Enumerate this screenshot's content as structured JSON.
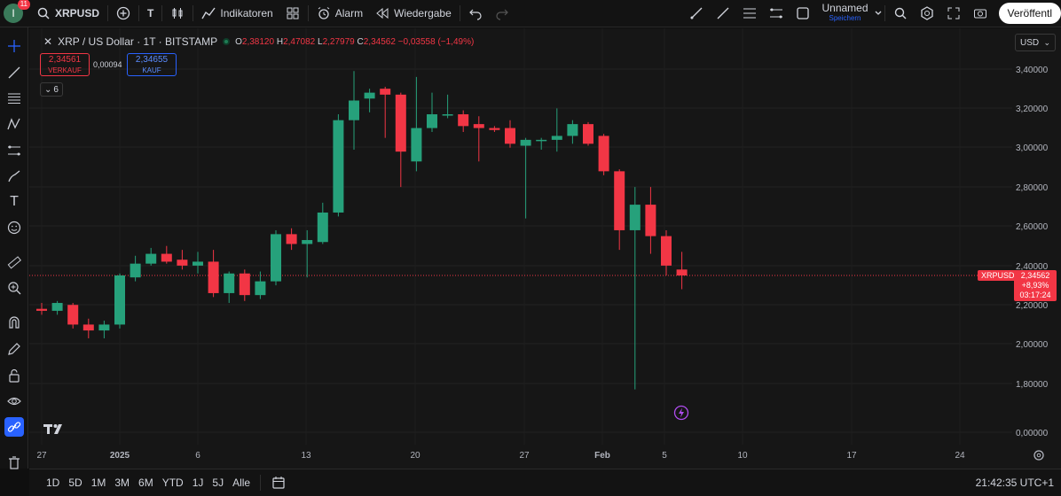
{
  "topbar": {
    "avatar_letter": "I",
    "notifications": "11",
    "symbol": "XRPUSD",
    "text_tool": "T",
    "indicators": "Indikatoren",
    "alarm": "Alarm",
    "replay": "Wiedergabe",
    "layout_name": "Unnamed",
    "save_label": "Speichern",
    "publish": "Veröffentl"
  },
  "legend": {
    "title": "XRP / US Dollar · 1T · BITSTAMP",
    "o_label": "O",
    "o_val": "2,38120",
    "h_label": "H",
    "h_val": "2,47082",
    "l_label": "L",
    "l_val": "2,27979",
    "c_label": "C",
    "c_val": "2,34562",
    "change": "−0,03558 (−1,49%)",
    "sell_price": "2,34561",
    "sell_label": "VERKAUF",
    "spread": "0,00094",
    "buy_price": "2,34655",
    "buy_label": "KAUF",
    "indicator_count": "6"
  },
  "currency": "USD",
  "price_tag": {
    "symbol": "XRPUSD",
    "price": "2,34562",
    "change": "+8,93%",
    "countdown": "03:17:24"
  },
  "bottombar": {
    "timeframes": [
      "1D",
      "5D",
      "1M",
      "3M",
      "6M",
      "YTD",
      "1J",
      "5J",
      "Alle"
    ],
    "clock": "21:42:35 UTC+1"
  },
  "colors": {
    "up": "#26a17b",
    "down": "#f23645",
    "accent": "#2962ff",
    "bg": "#161616"
  },
  "chart_data": {
    "type": "candlestick",
    "y_ticks": [
      "3,40000",
      "3,20000",
      "3,00000",
      "2,80000",
      "2,60000",
      "2,40000",
      "2,20000",
      "2,00000",
      "1,80000",
      "0,00000"
    ],
    "x_ticks": [
      "27",
      "2025",
      "6",
      "13",
      "20",
      "27",
      "Feb",
      "5",
      "10",
      "17",
      "24"
    ],
    "candles": [
      {
        "o": 2.18,
        "h": 2.21,
        "l": 2.15,
        "c": 2.17
      },
      {
        "o": 2.17,
        "h": 2.22,
        "l": 2.15,
        "c": 2.21
      },
      {
        "o": 2.2,
        "h": 2.21,
        "l": 2.08,
        "c": 2.1
      },
      {
        "o": 2.1,
        "h": 2.13,
        "l": 2.03,
        "c": 2.07
      },
      {
        "o": 2.07,
        "h": 2.12,
        "l": 2.03,
        "c": 2.1
      },
      {
        "o": 2.1,
        "h": 2.36,
        "l": 2.08,
        "c": 2.35
      },
      {
        "o": 2.34,
        "h": 2.45,
        "l": 2.32,
        "c": 2.41
      },
      {
        "o": 2.41,
        "h": 2.49,
        "l": 2.4,
        "c": 2.46
      },
      {
        "o": 2.46,
        "h": 2.5,
        "l": 2.41,
        "c": 2.42
      },
      {
        "o": 2.43,
        "h": 2.48,
        "l": 2.38,
        "c": 2.4
      },
      {
        "o": 2.4,
        "h": 2.47,
        "l": 2.36,
        "c": 2.42
      },
      {
        "o": 2.42,
        "h": 2.48,
        "l": 2.24,
        "c": 2.26
      },
      {
        "o": 2.26,
        "h": 2.37,
        "l": 2.21,
        "c": 2.36
      },
      {
        "o": 2.36,
        "h": 2.38,
        "l": 2.22,
        "c": 2.25
      },
      {
        "o": 2.25,
        "h": 2.37,
        "l": 2.23,
        "c": 2.32
      },
      {
        "o": 2.32,
        "h": 2.58,
        "l": 2.3,
        "c": 2.56
      },
      {
        "o": 2.56,
        "h": 2.59,
        "l": 2.48,
        "c": 2.51
      },
      {
        "o": 2.51,
        "h": 2.58,
        "l": 2.34,
        "c": 2.53
      },
      {
        "o": 2.52,
        "h": 2.72,
        "l": 2.51,
        "c": 2.67
      },
      {
        "o": 2.67,
        "h": 3.17,
        "l": 2.65,
        "c": 3.14
      },
      {
        "o": 3.14,
        "h": 3.39,
        "l": 2.99,
        "c": 3.24
      },
      {
        "o": 3.25,
        "h": 3.3,
        "l": 3.18,
        "c": 3.28
      },
      {
        "o": 3.3,
        "h": 3.31,
        "l": 3.05,
        "c": 3.27
      },
      {
        "o": 3.27,
        "h": 3.28,
        "l": 2.8,
        "c": 2.98
      },
      {
        "o": 2.93,
        "h": 3.36,
        "l": 2.88,
        "c": 3.1
      },
      {
        "o": 3.1,
        "h": 3.28,
        "l": 3.08,
        "c": 3.17
      },
      {
        "o": 3.17,
        "h": 3.27,
        "l": 3.15,
        "c": 3.17
      },
      {
        "o": 3.17,
        "h": 3.19,
        "l": 3.08,
        "c": 3.11
      },
      {
        "o": 3.12,
        "h": 3.16,
        "l": 2.93,
        "c": 3.1
      },
      {
        "o": 3.1,
        "h": 3.11,
        "l": 3.08,
        "c": 3.09
      },
      {
        "o": 3.1,
        "h": 3.14,
        "l": 3.0,
        "c": 3.02
      },
      {
        "o": 3.01,
        "h": 3.05,
        "l": 2.64,
        "c": 3.04
      },
      {
        "o": 3.04,
        "h": 3.05,
        "l": 2.99,
        "c": 3.04
      },
      {
        "o": 3.04,
        "h": 3.2,
        "l": 2.98,
        "c": 3.06
      },
      {
        "o": 3.06,
        "h": 3.14,
        "l": 3.02,
        "c": 3.12
      },
      {
        "o": 3.12,
        "h": 3.13,
        "l": 3.01,
        "c": 3.02
      },
      {
        "o": 3.06,
        "h": 3.07,
        "l": 2.86,
        "c": 2.88
      },
      {
        "o": 2.88,
        "h": 2.89,
        "l": 2.48,
        "c": 2.58
      },
      {
        "o": 2.58,
        "h": 2.8,
        "l": 1.77,
        "c": 2.71
      },
      {
        "o": 2.71,
        "h": 2.8,
        "l": 2.46,
        "c": 2.55
      },
      {
        "o": 2.55,
        "h": 2.58,
        "l": 2.35,
        "c": 2.4
      },
      {
        "o": 2.38,
        "h": 2.47,
        "l": 2.28,
        "c": 2.35
      }
    ]
  }
}
